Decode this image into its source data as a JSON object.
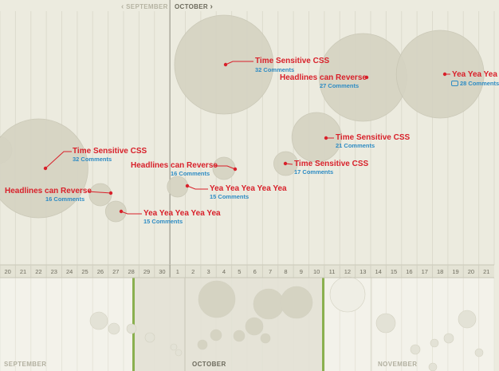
{
  "nav": {
    "prev_month": "SEPTEMBER",
    "current_month": "OCTOBER"
  },
  "chart_data": {
    "type": "scatter",
    "title": "",
    "xlabel": "",
    "ylabel": "",
    "x_ticks": [
      "20",
      "21",
      "22",
      "23",
      "24",
      "25",
      "26",
      "27",
      "28",
      "29",
      "30",
      "1",
      "2",
      "3",
      "4",
      "5",
      "6",
      "7",
      "8",
      "9",
      "10",
      "11",
      "12",
      "13",
      "14",
      "15",
      "16",
      "17",
      "18",
      "19",
      "20",
      "21"
    ],
    "points": [
      {
        "title": "Time Sensitive CSS",
        "comments_label": "32 Comments",
        "comments": 32,
        "date": "Sep 22"
      },
      {
        "title": "Headlines can Reverse",
        "comments_label": "16 Comments",
        "comments": 16,
        "date": "Sep 26"
      },
      {
        "title": "Yea Yea Yea Yea Yea",
        "comments_label": "15 Comments",
        "comments": 15,
        "date": "Sep 27"
      },
      {
        "title": "Yea Yea Yea Yea Yea",
        "comments_label": "15 Comments",
        "comments": 15,
        "date": "Oct 1"
      },
      {
        "title": "Headlines can Reverse",
        "comments_label": "16 Comments",
        "comments": 16,
        "date": "Oct 4"
      },
      {
        "title": "Time Sensitive CSS",
        "comments_label": "32 Comments",
        "comments": 32,
        "date": "Oct 4"
      },
      {
        "title": "Time Sensitive CSS",
        "comments_label": "17 Comments",
        "comments": 17,
        "date": "Oct 8"
      },
      {
        "title": "Time Sensitive CSS",
        "comments_label": "21 Comments",
        "comments": 21,
        "date": "Oct 10"
      },
      {
        "title": "Headlines can Reverse",
        "comments_label": "27 Comments",
        "comments": 27,
        "date": "Oct 13"
      },
      {
        "title": "Yea Yea Yea",
        "comments_label": "28 Comments",
        "comments": 28,
        "date": "Oct 18"
      }
    ]
  },
  "overview": {
    "months": [
      "SEPTEMBER",
      "OCTOBER",
      "NOVEMBER"
    ]
  },
  "colors": {
    "background": "#ecebdf",
    "bubble": "#d5d3c2",
    "title": "#d8202a",
    "comments": "#2e8cc4",
    "range_handle": "#8ab04f"
  }
}
